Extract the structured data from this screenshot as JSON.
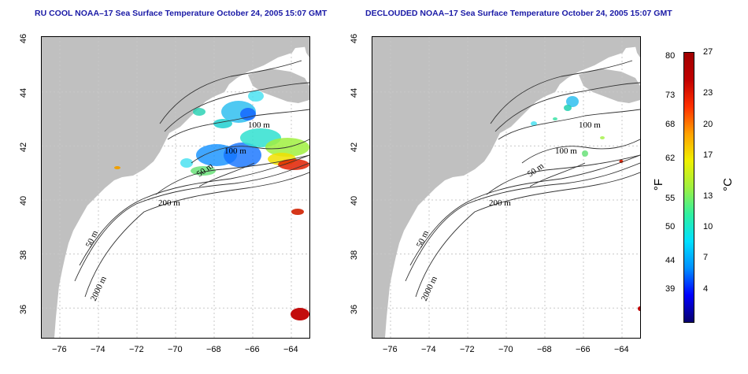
{
  "maps": [
    {
      "title": "RU COOL NOAA–17 Sea Surface Temperature October 24, 2005 15:07 GMT",
      "depth_labels": [
        "100 m",
        "100 m",
        "50 m",
        "200 m",
        "50 m",
        "2000 m"
      ]
    },
    {
      "title": "DECLOUDED NOAA–17 Sea Surface Temperature October 24, 2005 15:07 GMT",
      "depth_labels": [
        "100 m",
        "100 m",
        "50 m",
        "200 m",
        "50 m",
        "2000 m"
      ]
    }
  ],
  "lon_ticks": [
    "−76",
    "−74",
    "−72",
    "−70",
    "−68",
    "−66",
    "−64"
  ],
  "lat_ticks": [
    "36",
    "38",
    "40",
    "42",
    "44",
    "46"
  ],
  "colorbar": {
    "fahrenheit_ticks": [
      "80",
      "73",
      "68",
      "62",
      "55",
      "50",
      "44",
      "39"
    ],
    "celsius_ticks": [
      "27",
      "23",
      "20",
      "17",
      "13",
      "10",
      "7",
      "4"
    ],
    "fahrenheit_unit": "°F",
    "celsius_unit": "°C",
    "colors": [
      "#08006e",
      "#0000ff",
      "#0090ff",
      "#00e0ff",
      "#30f0a0",
      "#a0f040",
      "#f0f000",
      "#ffa000",
      "#ff3000",
      "#c00000",
      "#a00000"
    ]
  },
  "colors": {
    "land": "#c0c0c0",
    "ocean": "#ffffff",
    "title": "#1a1aa6",
    "grid": "#c8c8c8"
  }
}
